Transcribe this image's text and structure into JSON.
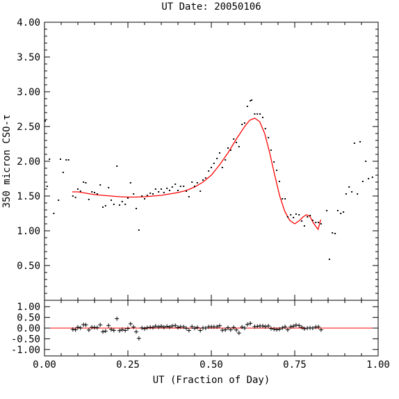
{
  "chart_data": [
    {
      "type": "scatter",
      "title": "UT Date: 20050106",
      "xlabel": "UT (Fraction of Day)",
      "ylabel": "350 micron CSO-τ",
      "xlim": [
        0.0,
        1.0
      ],
      "ylim": [
        0.0,
        4.0
      ],
      "xticks": [
        "0.00",
        "0.25",
        "0.50",
        "0.75",
        "1.00"
      ],
      "yticks": [
        "0.50",
        "1.00",
        "1.50",
        "2.00",
        "2.50",
        "3.00",
        "3.50",
        "4.00"
      ],
      "grid": false,
      "colors": {
        "points": "#000000",
        "fit": "#ff0000"
      },
      "points": [
        {
          "x": 0.002,
          "y": 2.58
        },
        {
          "x": 0.008,
          "y": 1.64
        },
        {
          "x": 0.015,
          "y": 2.03
        },
        {
          "x": 0.028,
          "y": 1.25
        },
        {
          "x": 0.042,
          "y": 1.44
        },
        {
          "x": 0.048,
          "y": 2.03
        },
        {
          "x": 0.056,
          "y": 1.84
        },
        {
          "x": 0.065,
          "y": 2.02
        },
        {
          "x": 0.072,
          "y": 2.02
        },
        {
          "x": 0.085,
          "y": 1.5
        },
        {
          "x": 0.093,
          "y": 1.48
        },
        {
          "x": 0.1,
          "y": 1.6
        },
        {
          "x": 0.108,
          "y": 1.57
        },
        {
          "x": 0.117,
          "y": 1.7
        },
        {
          "x": 0.124,
          "y": 1.69
        },
        {
          "x": 0.133,
          "y": 1.45
        },
        {
          "x": 0.142,
          "y": 1.56
        },
        {
          "x": 0.15,
          "y": 1.55
        },
        {
          "x": 0.158,
          "y": 1.53
        },
        {
          "x": 0.167,
          "y": 1.66
        },
        {
          "x": 0.175,
          "y": 1.34
        },
        {
          "x": 0.183,
          "y": 1.36
        },
        {
          "x": 0.192,
          "y": 1.62
        },
        {
          "x": 0.2,
          "y": 1.44
        },
        {
          "x": 0.208,
          "y": 1.38
        },
        {
          "x": 0.217,
          "y": 1.93
        },
        {
          "x": 0.225,
          "y": 1.37
        },
        {
          "x": 0.233,
          "y": 1.42
        },
        {
          "x": 0.242,
          "y": 1.38
        },
        {
          "x": 0.25,
          "y": 1.47
        },
        {
          "x": 0.258,
          "y": 1.69
        },
        {
          "x": 0.267,
          "y": 1.53
        },
        {
          "x": 0.275,
          "y": 1.32
        },
        {
          "x": 0.283,
          "y": 1.01
        },
        {
          "x": 0.292,
          "y": 1.5
        },
        {
          "x": 0.3,
          "y": 1.46
        },
        {
          "x": 0.308,
          "y": 1.51
        },
        {
          "x": 0.317,
          "y": 1.54
        },
        {
          "x": 0.325,
          "y": 1.53
        },
        {
          "x": 0.333,
          "y": 1.6
        },
        {
          "x": 0.342,
          "y": 1.56
        },
        {
          "x": 0.35,
          "y": 1.6
        },
        {
          "x": 0.358,
          "y": 1.55
        },
        {
          "x": 0.367,
          "y": 1.61
        },
        {
          "x": 0.375,
          "y": 1.58
        },
        {
          "x": 0.383,
          "y": 1.63
        },
        {
          "x": 0.392,
          "y": 1.67
        },
        {
          "x": 0.4,
          "y": 1.58
        },
        {
          "x": 0.408,
          "y": 1.64
        },
        {
          "x": 0.417,
          "y": 1.64
        },
        {
          "x": 0.425,
          "y": 1.57
        },
        {
          "x": 0.433,
          "y": 1.49
        },
        {
          "x": 0.442,
          "y": 1.7
        },
        {
          "x": 0.45,
          "y": 1.64
        },
        {
          "x": 0.458,
          "y": 1.69
        },
        {
          "x": 0.467,
          "y": 1.57
        },
        {
          "x": 0.475,
          "y": 1.73
        },
        {
          "x": 0.483,
          "y": 1.76
        },
        {
          "x": 0.492,
          "y": 1.86
        },
        {
          "x": 0.5,
          "y": 1.91
        },
        {
          "x": 0.508,
          "y": 1.97
        },
        {
          "x": 0.517,
          "y": 2.04
        },
        {
          "x": 0.525,
          "y": 2.12
        },
        {
          "x": 0.533,
          "y": 1.91
        },
        {
          "x": 0.542,
          "y": 2.02
        },
        {
          "x": 0.55,
          "y": 2.19
        },
        {
          "x": 0.558,
          "y": 2.16
        },
        {
          "x": 0.567,
          "y": 2.32
        },
        {
          "x": 0.575,
          "y": 2.27
        },
        {
          "x": 0.583,
          "y": 2.21
        },
        {
          "x": 0.592,
          "y": 2.53
        },
        {
          "x": 0.6,
          "y": 2.55
        },
        {
          "x": 0.608,
          "y": 2.79
        },
        {
          "x": 0.617,
          "y": 2.87
        },
        {
          "x": 0.621,
          "y": 2.88
        },
        {
          "x": 0.63,
          "y": 2.68
        },
        {
          "x": 0.638,
          "y": 2.68
        },
        {
          "x": 0.646,
          "y": 2.68
        },
        {
          "x": 0.654,
          "y": 2.63
        },
        {
          "x": 0.662,
          "y": 2.47
        },
        {
          "x": 0.671,
          "y": 2.34
        },
        {
          "x": 0.679,
          "y": 2.16
        },
        {
          "x": 0.688,
          "y": 1.99
        },
        {
          "x": 0.696,
          "y": 1.87
        },
        {
          "x": 0.704,
          "y": 1.71
        },
        {
          "x": 0.713,
          "y": 1.46
        },
        {
          "x": 0.721,
          "y": 1.46
        },
        {
          "x": 0.729,
          "y": 1.2
        },
        {
          "x": 0.738,
          "y": 1.23
        },
        {
          "x": 0.746,
          "y": 1.19
        },
        {
          "x": 0.754,
          "y": 1.24
        },
        {
          "x": 0.763,
          "y": 1.23
        },
        {
          "x": 0.771,
          "y": 1.14
        },
        {
          "x": 0.779,
          "y": 1.07
        },
        {
          "x": 0.788,
          "y": 1.2
        },
        {
          "x": 0.796,
          "y": 1.22
        },
        {
          "x": 0.804,
          "y": 1.15
        },
        {
          "x": 0.813,
          "y": 1.12
        },
        {
          "x": 0.821,
          "y": 1.12
        },
        {
          "x": 0.829,
          "y": 1.1
        },
        {
          "x": 0.846,
          "y": 1.29
        },
        {
          "x": 0.854,
          "y": 0.59
        },
        {
          "x": 0.863,
          "y": 0.97
        },
        {
          "x": 0.871,
          "y": 0.96
        },
        {
          "x": 0.879,
          "y": 1.29
        },
        {
          "x": 0.888,
          "y": 1.25
        },
        {
          "x": 0.896,
          "y": 1.27
        },
        {
          "x": 0.904,
          "y": 1.53
        },
        {
          "x": 0.913,
          "y": 1.63
        },
        {
          "x": 0.921,
          "y": 1.56
        },
        {
          "x": 0.929,
          "y": 2.26
        },
        {
          "x": 0.938,
          "y": 1.53
        },
        {
          "x": 0.946,
          "y": 2.28
        },
        {
          "x": 0.954,
          "y": 1.71
        },
        {
          "x": 0.963,
          "y": 2.0
        },
        {
          "x": 0.971,
          "y": 1.75
        },
        {
          "x": 0.983,
          "y": 1.77
        }
      ],
      "fit": [
        {
          "x": 0.083,
          "y": 1.56
        },
        {
          "x": 0.1,
          "y": 1.56
        },
        {
          "x": 0.125,
          "y": 1.54
        },
        {
          "x": 0.15,
          "y": 1.52
        },
        {
          "x": 0.175,
          "y": 1.51
        },
        {
          "x": 0.2,
          "y": 1.5
        },
        {
          "x": 0.225,
          "y": 1.49
        },
        {
          "x": 0.25,
          "y": 1.485
        },
        {
          "x": 0.275,
          "y": 1.485
        },
        {
          "x": 0.3,
          "y": 1.49
        },
        {
          "x": 0.325,
          "y": 1.5
        },
        {
          "x": 0.35,
          "y": 1.51
        },
        {
          "x": 0.375,
          "y": 1.53
        },
        {
          "x": 0.4,
          "y": 1.55
        },
        {
          "x": 0.425,
          "y": 1.58
        },
        {
          "x": 0.45,
          "y": 1.63
        },
        {
          "x": 0.475,
          "y": 1.7
        },
        {
          "x": 0.5,
          "y": 1.8
        },
        {
          "x": 0.525,
          "y": 1.95
        },
        {
          "x": 0.55,
          "y": 2.12
        },
        {
          "x": 0.575,
          "y": 2.32
        },
        {
          "x": 0.6,
          "y": 2.5
        },
        {
          "x": 0.615,
          "y": 2.59
        },
        {
          "x": 0.63,
          "y": 2.62
        },
        {
          "x": 0.645,
          "y": 2.57
        },
        {
          "x": 0.66,
          "y": 2.4
        },
        {
          "x": 0.675,
          "y": 2.12
        },
        {
          "x": 0.69,
          "y": 1.8
        },
        {
          "x": 0.705,
          "y": 1.5
        },
        {
          "x": 0.72,
          "y": 1.28
        },
        {
          "x": 0.735,
          "y": 1.15
        },
        {
          "x": 0.75,
          "y": 1.1
        },
        {
          "x": 0.765,
          "y": 1.15
        },
        {
          "x": 0.775,
          "y": 1.2
        },
        {
          "x": 0.785,
          "y": 1.23
        },
        {
          "x": 0.795,
          "y": 1.21
        },
        {
          "x": 0.805,
          "y": 1.12
        },
        {
          "x": 0.815,
          "y": 1.05
        },
        {
          "x": 0.82,
          "y": 1.02
        },
        {
          "x": 0.828,
          "y": 1.16
        }
      ]
    },
    {
      "type": "scatter",
      "title": "",
      "xlabel": "UT (Fraction of Day)",
      "ylabel": "",
      "xlim": [
        0.0,
        1.0
      ],
      "ylim": [
        -1.3,
        1.3
      ],
      "xticks": [
        "0.00",
        "0.25",
        "0.50",
        "0.75",
        "1.00"
      ],
      "yticks": [
        "-1.00",
        "-0.50",
        "0.00",
        "0.50",
        "1.00"
      ],
      "reference_line": 0.0,
      "colors": {
        "points": "#000000",
        "reference_line": "#ff0000"
      },
      "points": [
        {
          "x": 0.085,
          "y": -0.06
        },
        {
          "x": 0.093,
          "y": -0.08
        },
        {
          "x": 0.1,
          "y": 0.04
        },
        {
          "x": 0.108,
          "y": 0.01
        },
        {
          "x": 0.117,
          "y": 0.16
        },
        {
          "x": 0.124,
          "y": 0.15
        },
        {
          "x": 0.133,
          "y": -0.09
        },
        {
          "x": 0.142,
          "y": 0.04
        },
        {
          "x": 0.15,
          "y": 0.03
        },
        {
          "x": 0.158,
          "y": 0.02
        },
        {
          "x": 0.167,
          "y": 0.15
        },
        {
          "x": 0.175,
          "y": -0.17
        },
        {
          "x": 0.183,
          "y": -0.14
        },
        {
          "x": 0.192,
          "y": 0.12
        },
        {
          "x": 0.2,
          "y": -0.06
        },
        {
          "x": 0.208,
          "y": -0.11
        },
        {
          "x": 0.217,
          "y": 0.44
        },
        {
          "x": 0.225,
          "y": -0.12
        },
        {
          "x": 0.233,
          "y": -0.07
        },
        {
          "x": 0.242,
          "y": -0.11
        },
        {
          "x": 0.25,
          "y": -0.02
        },
        {
          "x": 0.258,
          "y": 0.2
        },
        {
          "x": 0.267,
          "y": 0.05
        },
        {
          "x": 0.275,
          "y": -0.17
        },
        {
          "x": 0.283,
          "y": -0.48
        },
        {
          "x": 0.292,
          "y": 0.01
        },
        {
          "x": 0.3,
          "y": -0.03
        },
        {
          "x": 0.308,
          "y": 0.02
        },
        {
          "x": 0.317,
          "y": 0.04
        },
        {
          "x": 0.325,
          "y": 0.03
        },
        {
          "x": 0.333,
          "y": 0.09
        },
        {
          "x": 0.342,
          "y": 0.05
        },
        {
          "x": 0.35,
          "y": 0.09
        },
        {
          "x": 0.358,
          "y": 0.04
        },
        {
          "x": 0.367,
          "y": 0.08
        },
        {
          "x": 0.375,
          "y": 0.05
        },
        {
          "x": 0.383,
          "y": 0.1
        },
        {
          "x": 0.392,
          "y": 0.12
        },
        {
          "x": 0.4,
          "y": 0.03
        },
        {
          "x": 0.408,
          "y": 0.06
        },
        {
          "x": 0.417,
          "y": 0.06
        },
        {
          "x": 0.425,
          "y": -0.01
        },
        {
          "x": 0.433,
          "y": -0.11
        },
        {
          "x": 0.442,
          "y": 0.07
        },
        {
          "x": 0.45,
          "y": -0.01
        },
        {
          "x": 0.458,
          "y": 0.03
        },
        {
          "x": 0.467,
          "y": -0.11
        },
        {
          "x": 0.475,
          "y": 0.01
        },
        {
          "x": 0.483,
          "y": 0.0
        },
        {
          "x": 0.492,
          "y": 0.06
        },
        {
          "x": 0.5,
          "y": 0.06
        },
        {
          "x": 0.508,
          "y": 0.06
        },
        {
          "x": 0.517,
          "y": 0.06
        },
        {
          "x": 0.525,
          "y": 0.11
        },
        {
          "x": 0.533,
          "y": -0.1
        },
        {
          "x": 0.542,
          "y": -0.08
        },
        {
          "x": 0.55,
          "y": 0.02
        },
        {
          "x": 0.558,
          "y": -0.08
        },
        {
          "x": 0.567,
          "y": 0.03
        },
        {
          "x": 0.575,
          "y": -0.09
        },
        {
          "x": 0.583,
          "y": -0.23
        },
        {
          "x": 0.592,
          "y": 0.05
        },
        {
          "x": 0.6,
          "y": 0.0
        },
        {
          "x": 0.608,
          "y": 0.17
        },
        {
          "x": 0.617,
          "y": 0.22
        },
        {
          "x": 0.63,
          "y": 0.07
        },
        {
          "x": 0.638,
          "y": 0.08
        },
        {
          "x": 0.646,
          "y": 0.1
        },
        {
          "x": 0.654,
          "y": 0.1
        },
        {
          "x": 0.662,
          "y": 0.07
        },
        {
          "x": 0.671,
          "y": 0.1
        },
        {
          "x": 0.679,
          "y": -0.02
        },
        {
          "x": 0.688,
          "y": -0.05
        },
        {
          "x": 0.696,
          "y": -0.07
        },
        {
          "x": 0.704,
          "y": -0.05
        },
        {
          "x": 0.713,
          "y": 0.01
        },
        {
          "x": 0.721,
          "y": 0.06
        },
        {
          "x": 0.729,
          "y": -0.08
        },
        {
          "x": 0.738,
          "y": 0.06
        },
        {
          "x": 0.746,
          "y": 0.09
        },
        {
          "x": 0.754,
          "y": 0.14
        },
        {
          "x": 0.763,
          "y": 0.12
        },
        {
          "x": 0.771,
          "y": 0.04
        },
        {
          "x": 0.779,
          "y": -0.03
        },
        {
          "x": 0.788,
          "y": 0.0
        },
        {
          "x": 0.796,
          "y": 0.01
        },
        {
          "x": 0.804,
          "y": 0.0
        },
        {
          "x": 0.813,
          "y": 0.05
        },
        {
          "x": 0.821,
          "y": 0.06
        },
        {
          "x": 0.829,
          "y": -0.08
        }
      ]
    }
  ]
}
